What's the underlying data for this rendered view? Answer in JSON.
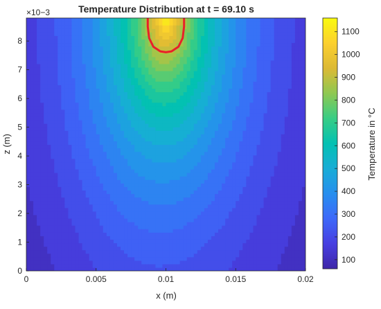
{
  "chart_data": {
    "type": "heatmap",
    "subtype": "filled-contour",
    "title": "Temperature Distribution at t = 69.10 s",
    "xlabel": "x (m)",
    "ylabel": "z (m)",
    "y_exponent": "×10−3",
    "colorbar_label": "Temperature in °C",
    "colormap": "parula",
    "xlim": [
      0,
      0.02
    ],
    "ylim": [
      0,
      0.0088
    ],
    "x_ticks": [
      "0",
      "0.005",
      "0.01",
      "0.015",
      "0.02"
    ],
    "x_tick_values": [
      0,
      0.005,
      0.01,
      0.015,
      0.02
    ],
    "y_ticks": [
      "0",
      "1",
      "2",
      "3",
      "4",
      "5",
      "6",
      "7",
      "8"
    ],
    "y_tick_values": [
      0,
      1,
      2,
      3,
      4,
      5,
      6,
      7,
      8
    ],
    "colorbar_range": [
      60,
      1160
    ],
    "colorbar_ticks": [
      "100",
      "200",
      "300",
      "400",
      "500",
      "600",
      "700",
      "800",
      "900",
      "1000",
      "1100"
    ],
    "colorbar_tick_values": [
      100,
      200,
      300,
      400,
      500,
      600,
      700,
      800,
      900,
      1000,
      1100
    ],
    "heat_source": {
      "x": 0.01,
      "z": 0.0088,
      "peak_temperature": 1150
    },
    "melt_pool_outline": {
      "color": "#e8202a",
      "points": [
        [
          0.0087,
          0.0088
        ],
        [
          0.0087,
          0.0085
        ],
        [
          0.0088,
          0.0081
        ],
        [
          0.0091,
          0.0078
        ],
        [
          0.0096,
          0.00764
        ],
        [
          0.01,
          0.00761
        ],
        [
          0.0104,
          0.00764
        ],
        [
          0.0109,
          0.0078
        ],
        [
          0.0112,
          0.0081
        ],
        [
          0.0113,
          0.0085
        ],
        [
          0.0113,
          0.0088
        ]
      ]
    }
  },
  "colors": {
    "outline": "#e8202a",
    "axes": "#262626"
  }
}
